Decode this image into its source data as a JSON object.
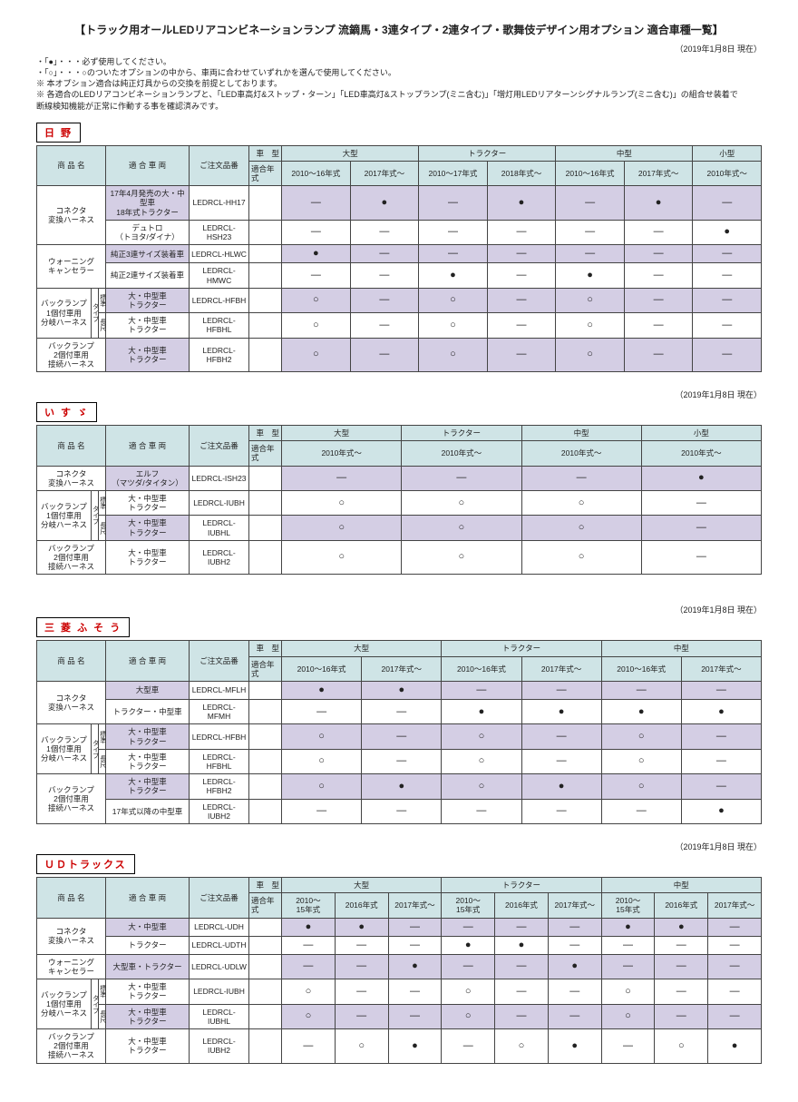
{
  "title": "【トラック用オールLEDリアコンビネーションランプ  流鏑馬・3連タイプ・2連タイプ・歌舞伎デザイン用オプション 適合車種一覧】",
  "date": "（2019年1月8日 現在）",
  "notes": [
    "・「●」・・・必ず使用してください。",
    "・「○」・・・○のついたオプションの中から、車両に合わせていずれかを選んで使用してください。",
    "※ 本オプション適合は純正灯具からの交換を前提としております。",
    "※ 各適合のLEDリアコンビネーションランプと、「LED車高灯&ストップ・ターン」「LED車高灯&ストップランプ(ミニ含む)」「増灯用LEDリアターンシグナルランプ(ミニ含む)」の組合せ装着で",
    "    断線検知機能が正常に作動する事を確認済みです。"
  ],
  "hdr": {
    "name": "商 品 名",
    "veh": "適 合 車 両",
    "order": "ご注文品番",
    "yrType": "車　型",
    "yrHdr": "適合年式",
    "large": "大型",
    "tractor": "トラクター",
    "mid": "中型",
    "small": "小型"
  },
  "makers": {
    "hino": {
      "tag": "日 野",
      "cols": [
        "2010～16年式",
        "2017年式～",
        "2010～17年式",
        "2018年式～",
        "2010～16年式",
        "2017年式～",
        "2010年式～"
      ],
      "groups": [
        {
          "name": "コネクタ\n変換ハーネス",
          "rows": [
            {
              "veh": "17年4月発売の大・中型車\n18年式トラクター",
              "ord": "LEDRCL-HH17",
              "marks": [
                "—",
                "●",
                "—",
                "●",
                "—",
                "●",
                "—"
              ],
              "lav": 1
            },
            {
              "veh": "デュトロ\n（トヨタ/ダイナ）",
              "ord": "LEDRCL-HSH23",
              "marks": [
                "—",
                "—",
                "—",
                "—",
                "—",
                "—",
                "●"
              ],
              "lav": 0
            }
          ]
        },
        {
          "name": "ウォーニング\nキャンセラー",
          "rows": [
            {
              "veh": "純正3連サイズ装着車",
              "ord": "LEDRCL-HLWC",
              "marks": [
                "●",
                "—",
                "—",
                "—",
                "—",
                "—",
                "—"
              ],
              "lav": 1
            },
            {
              "veh": "純正2連サイズ装着車",
              "ord": "LEDRCL-HMWC",
              "marks": [
                "—",
                "—",
                "●",
                "—",
                "●",
                "—",
                "—"
              ],
              "lav": 0
            }
          ]
        },
        {
          "name": "バックランプ\n1個付車用\n分岐ハーネス",
          "sub": 1,
          "rows": [
            {
              "sub": "標準",
              "veh": "大・中型車\nトラクター",
              "ord": "LEDRCL-HFBH",
              "marks": [
                "○",
                "—",
                "○",
                "—",
                "○",
                "—",
                "—"
              ],
              "lav": 1
            },
            {
              "sub": "長尺",
              "veh": "大・中型車\nトラクター",
              "ord": "LEDRCL-HFBHL",
              "marks": [
                "○",
                "—",
                "○",
                "—",
                "○",
                "—",
                "—"
              ],
              "lav": 0
            }
          ]
        },
        {
          "name": "バックランプ\n2個付車用\n接続ハーネス",
          "rows": [
            {
              "veh": "大・中型車\nトラクター",
              "ord": "LEDRCL-HFBH2",
              "marks": [
                "○",
                "—",
                "○",
                "—",
                "○",
                "—",
                "—"
              ],
              "lav": 1
            }
          ]
        }
      ]
    },
    "isuzu": {
      "tag": "い す ゞ",
      "cols": [
        "2010年式～",
        "2010年式～",
        "2010年式～",
        "2010年式～"
      ],
      "colHdrs": [
        "大型",
        "トラクター",
        "中型",
        "小型"
      ],
      "groups": [
        {
          "name": "コネクタ\n変換ハーネス",
          "rows": [
            {
              "veh": "エルフ\n（マツダ/タイタン）",
              "ord": "LEDRCL-ISH23",
              "marks": [
                "—",
                "—",
                "—",
                "●"
              ],
              "lav": 1
            }
          ]
        },
        {
          "name": "バックランプ\n1個付車用\n分岐ハーネス",
          "sub": 1,
          "rows": [
            {
              "sub": "標準",
              "veh": "大・中型車\nトラクター",
              "ord": "LEDRCL-IUBH",
              "marks": [
                "○",
                "○",
                "○",
                "—"
              ],
              "lav": 0
            },
            {
              "sub": "長尺",
              "veh": "大・中型車\nトラクター",
              "ord": "LEDRCL-IUBHL",
              "marks": [
                "○",
                "○",
                "○",
                "—"
              ],
              "lav": 1
            }
          ]
        },
        {
          "name": "バックランプ\n2個付車用\n接続ハーネス",
          "rows": [
            {
              "veh": "大・中型車\nトラクター",
              "ord": "LEDRCL-IUBH2",
              "marks": [
                "○",
                "○",
                "○",
                "—"
              ],
              "lav": 0
            }
          ]
        }
      ]
    },
    "fuso": {
      "tag": "三 菱 ふ そ う",
      "cols": [
        "2010～16年式",
        "2017年式～",
        "2010～16年式",
        "2017年式～",
        "2010～16年式",
        "2017年式～"
      ],
      "colHdrs": [
        "大型",
        "トラクター",
        "中型"
      ],
      "groups": [
        {
          "name": "コネクタ\n変換ハーネス",
          "rows": [
            {
              "veh": "大型車",
              "ord": "LEDRCL-MFLH",
              "marks": [
                "●",
                "●",
                "—",
                "—",
                "—",
                "—"
              ],
              "lav": 1
            },
            {
              "veh": "トラクター・中型車",
              "ord": "LEDRCL-MFMH",
              "marks": [
                "—",
                "—",
                "●",
                "●",
                "●",
                "●"
              ],
              "lav": 0
            }
          ]
        },
        {
          "name": "バックランプ\n1個付車用\n分岐ハーネス",
          "sub": 1,
          "rows": [
            {
              "sub": "標準",
              "veh": "大・中型車\nトラクター",
              "ord": "LEDRCL-HFBH",
              "marks": [
                "○",
                "—",
                "○",
                "—",
                "○",
                "—"
              ],
              "lav": 1
            },
            {
              "sub": "長尺",
              "veh": "大・中型車\nトラクター",
              "ord": "LEDRCL-HFBHL",
              "marks": [
                "○",
                "—",
                "○",
                "—",
                "○",
                "—"
              ],
              "lav": 0
            }
          ]
        },
        {
          "name": "バックランプ\n2個付車用\n接続ハーネス",
          "rows": [
            {
              "veh": "大・中型車\nトラクター",
              "ord": "LEDRCL-HFBH2",
              "marks": [
                "○",
                "●",
                "○",
                "●",
                "○",
                "—"
              ],
              "lav": 1
            },
            {
              "veh": "17年式以降の中型車",
              "ord": "LEDRCL-IUBH2",
              "marks": [
                "—",
                "—",
                "—",
                "—",
                "—",
                "●"
              ],
              "lav": 0
            }
          ]
        }
      ]
    },
    "ud": {
      "tag": "ＵＤトラックス",
      "cols": [
        "2010～\n15年式",
        "2016年式",
        "2017年式～",
        "2010～\n15年式",
        "2016年式",
        "2017年式～",
        "2010～\n15年式",
        "2016年式",
        "2017年式～"
      ],
      "colHdrs": [
        "大型",
        "トラクター",
        "中型"
      ],
      "groups": [
        {
          "name": "コネクタ\n変換ハーネス",
          "rows": [
            {
              "veh": "大・中型車",
              "ord": "LEDRCL-UDH",
              "marks": [
                "●",
                "●",
                "—",
                "—",
                "—",
                "—",
                "●",
                "●",
                "—"
              ],
              "lav": 1
            },
            {
              "veh": "トラクター",
              "ord": "LEDRCL-UDTH",
              "marks": [
                "—",
                "—",
                "—",
                "●",
                "●",
                "—",
                "—",
                "—",
                "—"
              ],
              "lav": 0
            }
          ]
        },
        {
          "name": "ウォーニング\nキャンセラー",
          "rows": [
            {
              "veh": "大型車・トラクター",
              "ord": "LEDRCL-UDLW",
              "marks": [
                "—",
                "—",
                "●",
                "—",
                "—",
                "●",
                "—",
                "—",
                "—"
              ],
              "lav": 1
            }
          ]
        },
        {
          "name": "バックランプ\n1個付車用\n分岐ハーネス",
          "sub": 1,
          "rows": [
            {
              "sub": "標準",
              "veh": "大・中型車\nトラクター",
              "ord": "LEDRCL-IUBH",
              "marks": [
                "○",
                "—",
                "—",
                "○",
                "—",
                "—",
                "○",
                "—",
                "—"
              ],
              "lav": 0
            },
            {
              "sub": "長尺",
              "veh": "大・中型車\nトラクター",
              "ord": "LEDRCL-IUBHL",
              "marks": [
                "○",
                "—",
                "—",
                "○",
                "—",
                "—",
                "○",
                "—",
                "—"
              ],
              "lav": 1
            }
          ]
        },
        {
          "name": "バックランプ\n2個付車用\n接続ハーネス",
          "rows": [
            {
              "veh": "大・中型車\nトラクター",
              "ord": "LEDRCL-IUBH2",
              "marks": [
                "—",
                "○",
                "●",
                "—",
                "○",
                "●",
                "—",
                "○",
                "●"
              ],
              "lav": 0
            }
          ]
        }
      ]
    }
  },
  "sub": {
    "tai": "タイプ"
  }
}
